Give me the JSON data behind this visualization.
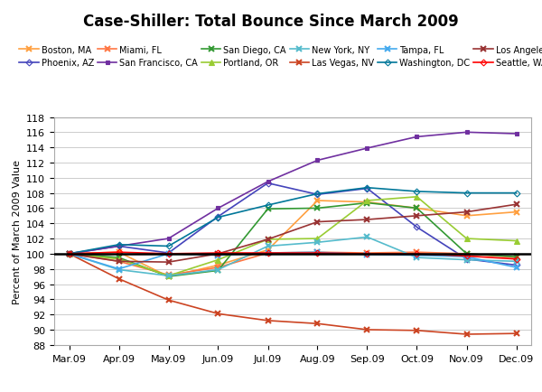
{
  "title": "Case-Shiller: Total Bounce Since March 2009",
  "ylabel": "Percent of March 2009 Value",
  "x_labels": [
    "Mar.09",
    "Apr.09",
    "May.09",
    "Jun.09",
    "Jul.09",
    "Aug.09",
    "Sep.09",
    "Oct.09",
    "Nov.09",
    "Dec.09"
  ],
  "ylim": [
    88,
    118
  ],
  "yticks": [
    88,
    90,
    92,
    94,
    96,
    98,
    100,
    102,
    104,
    106,
    108,
    110,
    112,
    114,
    116,
    118
  ],
  "series": [
    {
      "label": "Boston, MA",
      "color": "#FFA040",
      "marker": "x",
      "values": [
        100,
        100.2,
        97.0,
        98.5,
        100.5,
        107.0,
        106.8,
        106.0,
        105.0,
        105.5
      ]
    },
    {
      "label": "Phoenix, AZ",
      "color": "#4444BB",
      "marker": "D",
      "values": [
        100,
        101.0,
        100.1,
        104.9,
        109.3,
        107.8,
        108.6,
        103.5,
        99.3,
        98.5
      ]
    },
    {
      "label": "Miami, FL",
      "color": "#FF7744",
      "marker": "x",
      "values": [
        100,
        99.0,
        97.2,
        98.2,
        100.1,
        100.2,
        100.1,
        100.2,
        100.0,
        99.5
      ]
    },
    {
      "label": "San Francisco, CA",
      "color": "#7030A0",
      "marker": "s",
      "values": [
        100,
        101.0,
        102.0,
        106.0,
        109.5,
        112.3,
        113.9,
        115.4,
        116.0,
        115.8
      ]
    },
    {
      "label": "San Diego, CA",
      "color": "#339933",
      "marker": "x",
      "values": [
        100,
        99.5,
        97.0,
        97.8,
        105.9,
        106.0,
        106.7,
        106.0,
        100.0,
        99.6
      ]
    },
    {
      "label": "Portland, OR",
      "color": "#99CC33",
      "marker": "^",
      "values": [
        100,
        99.3,
        97.1,
        99.2,
        101.9,
        102.0,
        107.0,
        107.5,
        102.0,
        101.7
      ]
    },
    {
      "label": "New York, NY",
      "color": "#55BBCC",
      "marker": "x",
      "values": [
        100,
        97.9,
        97.1,
        97.9,
        101.0,
        101.5,
        102.2,
        99.5,
        99.2,
        99.0
      ]
    },
    {
      "label": "Las Vegas, NV",
      "color": "#CC4422",
      "marker": "x",
      "values": [
        100,
        96.7,
        93.9,
        92.1,
        91.2,
        90.8,
        90.0,
        89.9,
        89.4,
        89.5
      ]
    },
    {
      "label": "Tampa, FL",
      "color": "#44AAEE",
      "marker": "x",
      "values": [
        100,
        98.0,
        100.0,
        99.8,
        100.1,
        100.2,
        99.9,
        99.8,
        99.6,
        98.2
      ]
    },
    {
      "label": "Washington, DC",
      "color": "#007799",
      "marker": "D",
      "values": [
        100,
        101.2,
        101.0,
        104.8,
        106.4,
        107.9,
        108.7,
        108.2,
        108.0,
        108.0
      ]
    },
    {
      "label": "Los Angeles, CA",
      "color": "#993333",
      "marker": "x",
      "values": [
        100,
        99.0,
        98.9,
        100.0,
        101.9,
        104.2,
        104.5,
        105.0,
        105.5,
        106.5
      ]
    },
    {
      "label": "Seattle, WA",
      "color": "#FF0000",
      "marker": "D",
      "values": [
        100,
        100.2,
        100.0,
        100.1,
        100.1,
        100.1,
        100.0,
        100.0,
        99.7,
        99.3
      ]
    }
  ],
  "legend_order": [
    "Boston, MA",
    "Phoenix, AZ",
    "Miami, FL",
    "San Francisco, CA",
    "San Diego, CA",
    "Portland, OR",
    "New York, NY",
    "Las Vegas, NV",
    "Tampa, FL",
    "Washington, DC",
    "Los Angeles, CA",
    "Seattle, WA"
  ],
  "background_color": "#FFFFFF",
  "grid_color": "#CCCCCC"
}
